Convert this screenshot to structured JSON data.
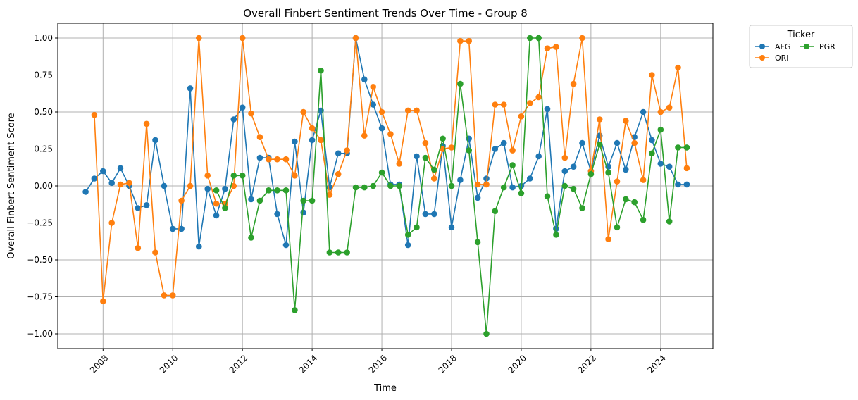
{
  "chart_data": {
    "type": "line",
    "title": "Overall Finbert Sentiment Trends Over Time - Group 8",
    "xlabel": "Time",
    "ylabel": "Overall Finbert Sentiment Score",
    "xlim": [
      2006.7,
      2025.5
    ],
    "ylim": [
      -1.1,
      1.1
    ],
    "grid": true,
    "x_ticks": [
      2008,
      2010,
      2012,
      2014,
      2016,
      2018,
      2020,
      2022,
      2024
    ],
    "x_tick_labels": [
      "2008",
      "2010",
      "2012",
      "2014",
      "2016",
      "2018",
      "2020",
      "2022",
      "2024"
    ],
    "y_ticks": [
      -1.0,
      -0.75,
      -0.5,
      -0.25,
      0.0,
      0.25,
      0.5,
      0.75,
      1.0
    ],
    "y_tick_labels": [
      "−1.00",
      "−0.75",
      "−0.50",
      "−0.25",
      "0.00",
      "0.25",
      "0.50",
      "0.75",
      "1.00"
    ],
    "legend": {
      "title": "Ticker",
      "placement": "outside-top-right"
    },
    "series": [
      {
        "name": "AFG",
        "color": "#1f77b4",
        "x": [
          2007.5,
          2007.75,
          2008.0,
          2008.25,
          2008.5,
          2008.75,
          2009.0,
          2009.25,
          2009.5,
          2009.75,
          2010.0,
          2010.25,
          2010.5,
          2010.75,
          2011.0,
          2011.25,
          2011.5,
          2011.75,
          2012.0,
          2012.25,
          2012.5,
          2012.75,
          2013.0,
          2013.25,
          2013.5,
          2013.75,
          2014.0,
          2014.25,
          2014.5,
          2014.75,
          2015.0,
          2015.25,
          2015.5,
          2015.75,
          2016.0,
          2016.25,
          2016.5,
          2016.75,
          2017.0,
          2017.25,
          2017.5,
          2017.75,
          2018.0,
          2018.25,
          2018.5,
          2018.75,
          2019.0,
          2019.25,
          2019.5,
          2019.75,
          2020.0,
          2020.25,
          2020.5,
          2020.75,
          2021.0,
          2021.25,
          2021.5,
          2021.75,
          2022.0,
          2022.25,
          2022.5,
          2022.75,
          2023.0,
          2023.25,
          2023.5,
          2023.75,
          2024.0,
          2024.25,
          2024.5,
          2024.75
        ],
        "y": [
          -0.04,
          0.05,
          0.1,
          0.02,
          0.12,
          0.0,
          -0.15,
          -0.13,
          0.31,
          0.0,
          -0.29,
          -0.29,
          0.66,
          -0.41,
          -0.02,
          -0.2,
          -0.02,
          0.45,
          0.53,
          -0.09,
          0.19,
          0.19,
          -0.19,
          -0.4,
          0.3,
          -0.18,
          0.31,
          0.51,
          -0.01,
          0.22,
          0.22,
          1.0,
          0.72,
          0.55,
          0.39,
          0.01,
          0.01,
          -0.4,
          0.2,
          -0.19,
          -0.19,
          0.27,
          -0.28,
          0.04,
          0.32,
          -0.08,
          0.05,
          0.25,
          0.29,
          -0.01,
          0.0,
          0.05,
          0.2,
          0.52,
          -0.29,
          0.1,
          0.13,
          0.29,
          0.1,
          0.34,
          0.13,
          0.29,
          0.11,
          0.33,
          0.5,
          0.31,
          0.15,
          0.13,
          0.01,
          0.01
        ]
      },
      {
        "name": "ORI",
        "color": "#ff7f0e",
        "x": [
          2007.75,
          2008.0,
          2008.25,
          2008.5,
          2008.75,
          2009.0,
          2009.25,
          2009.5,
          2009.75,
          2010.0,
          2010.25,
          2010.5,
          2010.75,
          2011.0,
          2011.25,
          2011.5,
          2011.75,
          2012.0,
          2012.25,
          2012.5,
          2012.75,
          2013.0,
          2013.25,
          2013.5,
          2013.75,
          2014.0,
          2014.25,
          2014.5,
          2014.75,
          2015.0,
          2015.25,
          2015.5,
          2015.75,
          2016.0,
          2016.25,
          2016.5,
          2016.75,
          2017.0,
          2017.25,
          2017.5,
          2017.75,
          2018.0,
          2018.25,
          2018.5,
          2018.75,
          2019.0,
          2019.25,
          2019.5,
          2019.75,
          2020.0,
          2020.25,
          2020.5,
          2020.75,
          2021.0,
          2021.25,
          2021.5,
          2021.75,
          2022.0,
          2022.25,
          2022.5,
          2022.75,
          2023.0,
          2023.25,
          2023.5,
          2023.75,
          2024.0,
          2024.25,
          2024.5,
          2024.75
        ],
        "y": [
          0.48,
          -0.78,
          -0.25,
          0.01,
          0.02,
          -0.42,
          0.42,
          -0.45,
          -0.74,
          -0.74,
          -0.1,
          0.0,
          1.0,
          0.07,
          -0.12,
          -0.12,
          0.0,
          1.0,
          0.49,
          0.33,
          0.18,
          0.18,
          0.18,
          0.07,
          0.5,
          0.39,
          0.31,
          -0.06,
          0.08,
          0.24,
          1.0,
          0.34,
          0.67,
          0.5,
          0.35,
          0.15,
          0.51,
          0.51,
          0.29,
          0.05,
          0.25,
          0.26,
          0.98,
          0.98,
          0.01,
          0.01,
          0.55,
          0.55,
          0.24,
          0.47,
          0.56,
          0.6,
          0.93,
          0.94,
          0.19,
          0.69,
          1.0,
          0.1,
          0.45,
          -0.36,
          0.03,
          0.44,
          0.29,
          0.04,
          0.75,
          0.5,
          0.53,
          0.8,
          0.12
        ]
      },
      {
        "name": "PGR",
        "color": "#2ca02c",
        "x": [
          2011.25,
          2011.5,
          2011.75,
          2012.0,
          2012.25,
          2012.5,
          2012.75,
          2013.0,
          2013.25,
          2013.5,
          2013.75,
          2014.0,
          2014.25,
          2014.5,
          2014.75,
          2015.0,
          2015.25,
          2015.5,
          2015.75,
          2016.0,
          2016.25,
          2016.5,
          2016.75,
          2017.0,
          2017.25,
          2017.5,
          2017.75,
          2018.0,
          2018.25,
          2018.5,
          2018.75,
          2019.0,
          2019.25,
          2019.5,
          2019.75,
          2020.0,
          2020.25,
          2020.5,
          2020.75,
          2021.0,
          2021.25,
          2021.5,
          2021.75,
          2022.0,
          2022.25,
          2022.5,
          2022.75,
          2023.0,
          2023.25,
          2023.5,
          2023.75,
          2024.0,
          2024.25,
          2024.5,
          2024.75
        ],
        "y": [
          -0.03,
          -0.15,
          0.07,
          0.07,
          -0.35,
          -0.1,
          -0.03,
          -0.03,
          -0.03,
          -0.84,
          -0.1,
          -0.1,
          0.78,
          -0.45,
          -0.45,
          -0.45,
          -0.01,
          -0.01,
          0.0,
          0.09,
          0.0,
          0.0,
          -0.33,
          -0.28,
          0.19,
          0.11,
          0.32,
          0.0,
          0.69,
          0.24,
          -0.38,
          -1.0,
          -0.17,
          -0.01,
          0.14,
          -0.05,
          1.0,
          1.0,
          -0.07,
          -0.33,
          0.0,
          -0.02,
          -0.15,
          0.08,
          0.28,
          0.09,
          -0.28,
          -0.09,
          -0.11,
          -0.23,
          0.22,
          0.38,
          -0.24,
          0.26,
          0.26
        ]
      }
    ]
  }
}
